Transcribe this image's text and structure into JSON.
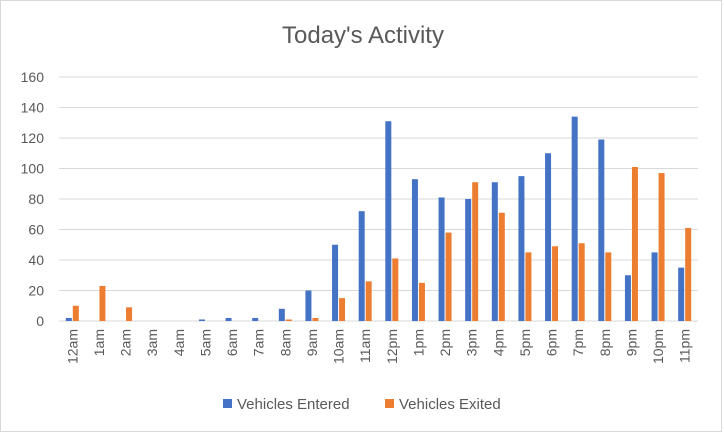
{
  "chart_data": {
    "type": "bar",
    "title": "Today's Activity",
    "xlabel": "",
    "ylabel": "",
    "ylim": [
      0,
      160
    ],
    "yticks": [
      0,
      20,
      40,
      60,
      80,
      100,
      120,
      140,
      160
    ],
    "grid": true,
    "legend_position": "bottom",
    "categories": [
      "12am",
      "1am",
      "2am",
      "3am",
      "4am",
      "5am",
      "6am",
      "7am",
      "8am",
      "9am",
      "10am",
      "11am",
      "12pm",
      "1pm",
      "2pm",
      "3pm",
      "4pm",
      "5pm",
      "6pm",
      "7pm",
      "8pm",
      "9pm",
      "10pm",
      "11pm"
    ],
    "series": [
      {
        "name": "Vehicles Entered",
        "color": "#4472c4",
        "values": [
          2,
          0,
          0,
          0,
          0,
          1,
          2,
          2,
          8,
          20,
          50,
          72,
          131,
          93,
          81,
          80,
          91,
          95,
          110,
          134,
          119,
          30,
          45,
          35
        ]
      },
      {
        "name": "Vehicles Exited",
        "color": "#ed7d31",
        "values": [
          10,
          23,
          9,
          0,
          0,
          0,
          0,
          0,
          1,
          2,
          15,
          26,
          41,
          25,
          58,
          91,
          71,
          45,
          49,
          51,
          45,
          101,
          97,
          61
        ]
      }
    ]
  }
}
